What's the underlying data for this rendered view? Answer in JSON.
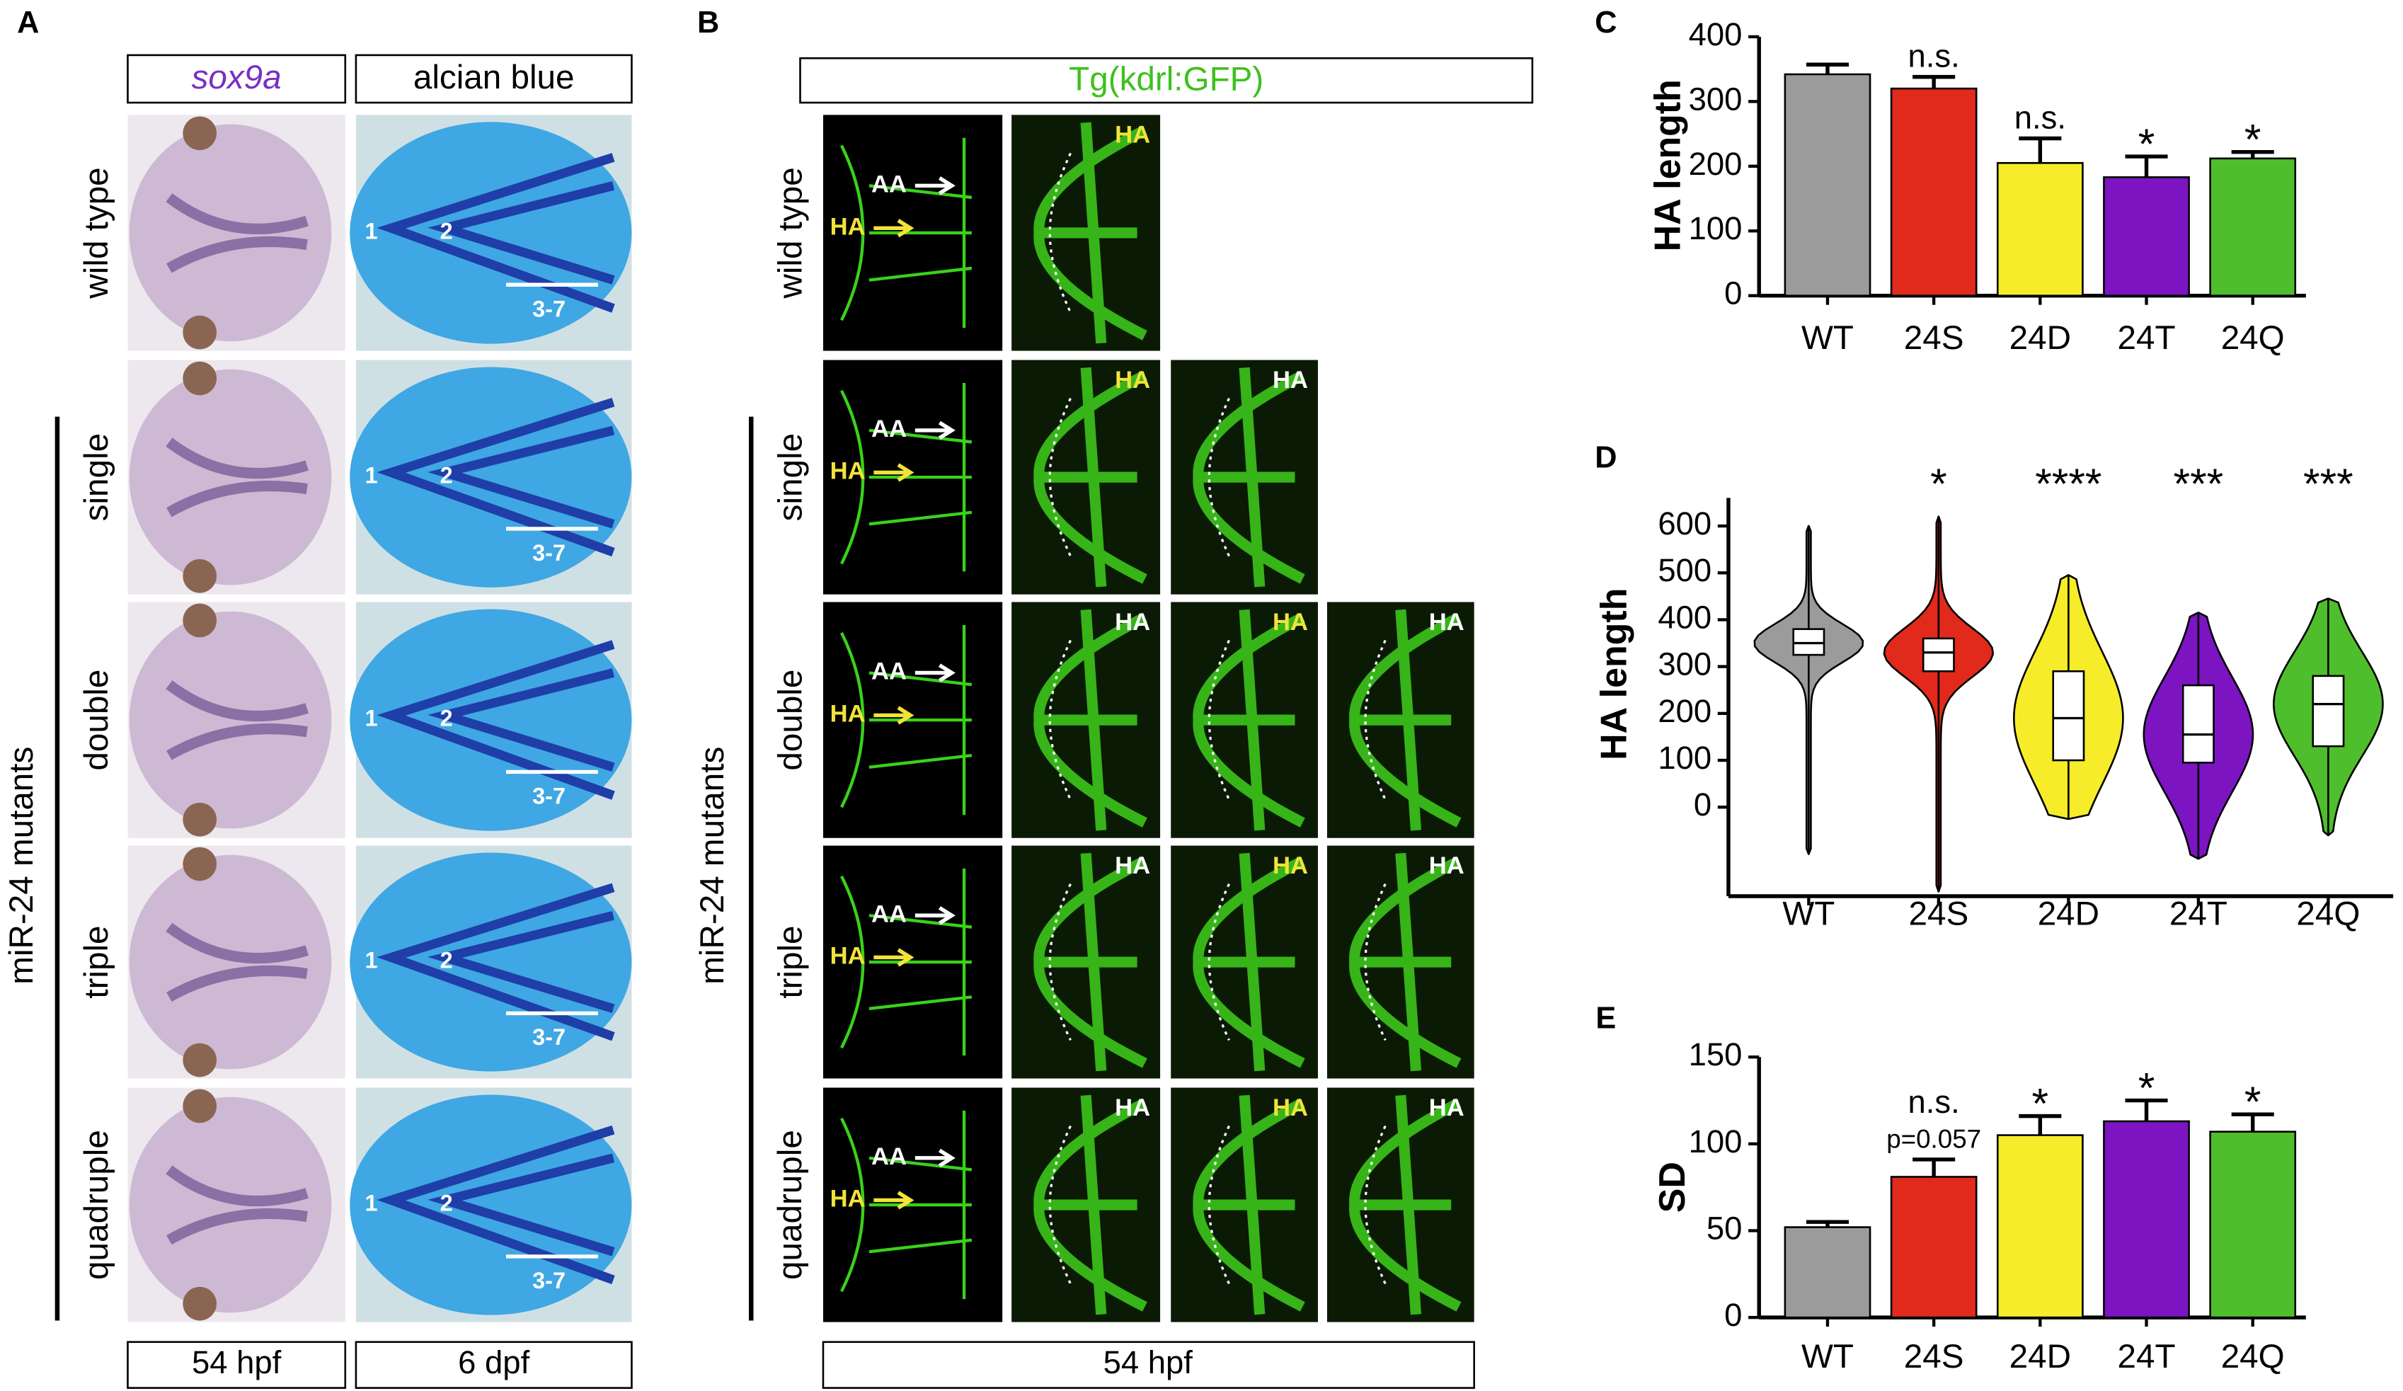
{
  "panel_A": {
    "letter": "A",
    "headers": [
      "sox9a",
      "alcian blue"
    ],
    "group_label": "miR-24 mutants",
    "rows": [
      "wild type",
      "single",
      "double",
      "triple",
      "quadruple"
    ],
    "footers": [
      "54 hpf",
      "6 dpf"
    ],
    "cartilage_labels": [
      [
        "1",
        "2",
        "3-7"
      ],
      [
        "1",
        "2",
        "3-7"
      ],
      [
        "1",
        "2",
        "3-7"
      ],
      [
        "1",
        "2",
        "3-7"
      ],
      [
        "1",
        "2",
        "3-7"
      ]
    ]
  },
  "panel_B": {
    "letter": "B",
    "header": "Tg(kdrl:GFP)",
    "group_label": "miR-24 mutants",
    "rows": [
      "wild type",
      "single",
      "double",
      "triple",
      "quadruple"
    ],
    "footer": "54 hpf",
    "arrow_labels": [
      [
        "AA",
        "HA"
      ],
      [
        "AA",
        "HA"
      ],
      [
        "AA",
        "HA"
      ],
      [
        "AA",
        "HA"
      ],
      [
        "AA",
        "HA"
      ]
    ],
    "image_labels": [
      [
        {
          "text": "HA",
          "color": "#f2e33a"
        }
      ],
      [
        {
          "text": "HA",
          "color": "#f2e33a"
        },
        {
          "text": "HA",
          "color": "#ffffff"
        }
      ],
      [
        {
          "text": "HA",
          "color": "#ffffff"
        },
        {
          "text": "HA",
          "color": "#f2e33a"
        },
        {
          "text": "HA",
          "color": "#ffffff"
        }
      ],
      [
        {
          "text": "HA",
          "color": "#ffffff"
        },
        {
          "text": "HA",
          "color": "#f2e33a"
        },
        {
          "text": "HA",
          "color": "#ffffff"
        }
      ],
      [
        {
          "text": "HA",
          "color": "#ffffff"
        },
        {
          "text": "HA",
          "color": "#f2e33a"
        },
        {
          "text": "HA",
          "color": "#ffffff"
        }
      ]
    ]
  },
  "chart_data": [
    {
      "type": "bar",
      "letter": "C",
      "ylabel": "HA length",
      "categories": [
        "WT",
        "24S",
        "24D",
        "24T",
        "24Q"
      ],
      "values": [
        342,
        320,
        205,
        183,
        212
      ],
      "errors": [
        15,
        18,
        38,
        32,
        10
      ],
      "annotations": [
        null,
        "n.s.",
        "n.s.",
        "*",
        "*"
      ],
      "annotation_notes": [
        null,
        null,
        null,
        null,
        null
      ],
      "colors": [
        "#9b9b9b",
        "#e12a1c",
        "#f6ec2a",
        "#7c14c2",
        "#4fbe2c"
      ],
      "ylim": [
        0,
        400
      ],
      "yticks": [
        0,
        100,
        200,
        300,
        400
      ]
    },
    {
      "type": "violin",
      "letter": "D",
      "ylabel": "HA length",
      "categories": [
        "WT",
        "24S",
        "24D",
        "24T",
        "24Q"
      ],
      "stats": {
        "min": [
          -100,
          -180,
          -25,
          -110,
          -60
        ],
        "q1": [
          325,
          290,
          100,
          95,
          130
        ],
        "median": [
          350,
          330,
          190,
          155,
          220
        ],
        "q3": [
          380,
          360,
          290,
          260,
          280
        ],
        "max": [
          600,
          620,
          495,
          415,
          445
        ]
      },
      "annotations": [
        null,
        "*",
        "****",
        "***",
        "***"
      ],
      "colors": [
        "#9b9b9b",
        "#e12a1c",
        "#f6ec2a",
        "#7c14c2",
        "#4fbe2c"
      ],
      "ylim": [
        -190,
        660
      ],
      "yticks": [
        0,
        100,
        200,
        300,
        400,
        500,
        600
      ]
    },
    {
      "type": "bar",
      "letter": "E",
      "ylabel": "SD",
      "categories": [
        "WT",
        "24S",
        "24D",
        "24T",
        "24Q"
      ],
      "values": [
        52,
        81,
        105,
        113,
        107
      ],
      "errors": [
        3,
        10,
        11,
        12,
        10
      ],
      "annotations": [
        null,
        "n.s.",
        "*",
        "*",
        "*"
      ],
      "annotation_notes": [
        null,
        "p=0.057",
        null,
        null,
        null
      ],
      "colors": [
        "#9b9b9b",
        "#e12a1c",
        "#f6ec2a",
        "#7c14c2",
        "#4fbe2c"
      ],
      "ylim": [
        0,
        150
      ],
      "yticks": [
        0,
        50,
        100,
        150
      ]
    }
  ]
}
